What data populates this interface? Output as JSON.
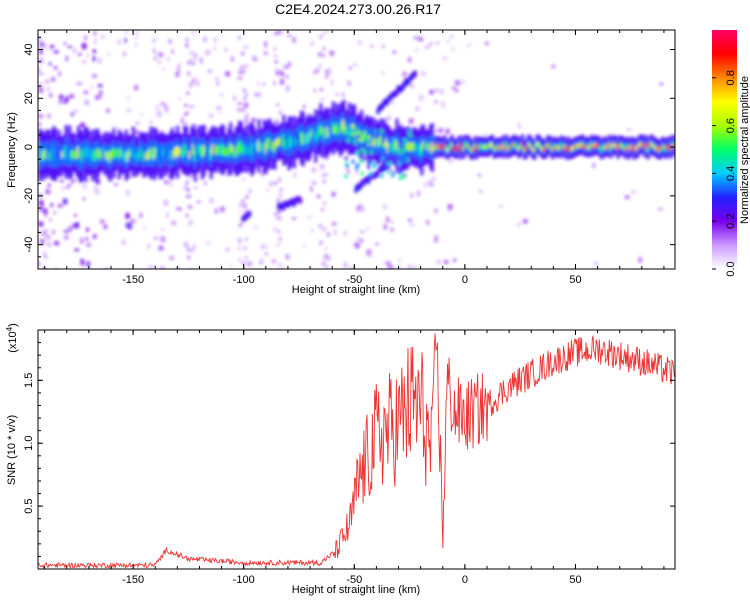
{
  "title": "C2E4.2024.273.00.26.R17",
  "chart_data": [
    {
      "type": "heatmap",
      "xlabel": "Height of straight line (km)",
      "ylabel": "Frequency (Hz)",
      "xlim": [
        -193,
        95
      ],
      "ylim": [
        -50,
        48
      ],
      "x_ticks": [
        -150,
        -100,
        -50,
        0,
        50
      ],
      "x_tick_labels": [
        "-150",
        "-100",
        "-50",
        "0",
        "50"
      ],
      "y_ticks": [
        -40,
        -20,
        0,
        20,
        40
      ],
      "y_tick_labels": [
        "-40",
        "-20",
        "0",
        "20",
        "40"
      ],
      "colorbar": {
        "label": "Normalized spectral amplitude",
        "range": [
          0.0,
          1.0
        ],
        "ticks": [
          0.0,
          0.2,
          0.4,
          0.6,
          0.8
        ],
        "tick_labels": [
          "0.0",
          "0.2",
          "0.4",
          "0.6",
          "0.8"
        ],
        "colormap": [
          "#ffffff",
          "#cc99ff",
          "#7700ee",
          "#2222ff",
          "#00ccff",
          "#00ff66",
          "#aaff00",
          "#ffff00",
          "#ff8800",
          "#ff0000",
          "#ff0066"
        ]
      },
      "features": [
        {
          "name": "main_band",
          "x": [
            -193,
            -150,
            -120,
            -100,
            -80,
            -65,
            -55,
            -45,
            -35,
            -20,
            0,
            30,
            60,
            95
          ],
          "y": [
            -3,
            -3,
            -2,
            -1,
            2,
            6,
            8,
            4,
            0,
            0,
            0,
            0,
            0,
            0
          ]
        },
        {
          "name": "upper_branch",
          "x": [
            -40,
            -30,
            -23
          ],
          "y": [
            15,
            24,
            30
          ]
        },
        {
          "name": "lower_branch",
          "x": [
            -50,
            -42,
            -35
          ],
          "y": [
            -17,
            -12,
            -7
          ]
        },
        {
          "name": "blob_low_1",
          "x": [
            -101,
            -98
          ],
          "y": [
            -30,
            -28
          ]
        },
        {
          "name": "blob_low_2",
          "x": [
            -85,
            -75
          ],
          "y": [
            -25,
            -22
          ]
        }
      ]
    },
    {
      "type": "line",
      "xlabel": "Height of straight line (km)",
      "ylabel": "SNR (10 * v/v)",
      "multiplier_label": "(x10",
      "multiplier_exp": "4",
      "xlim": [
        -193,
        95
      ],
      "ylim": [
        0,
        1.9
      ],
      "x_ticks": [
        -150,
        -100,
        -50,
        0,
        50
      ],
      "x_tick_labels": [
        "-150",
        "-100",
        "-50",
        "0",
        "50"
      ],
      "y_ticks": [
        0.5,
        1.0,
        1.5
      ],
      "y_tick_labels": [
        "0.5",
        "1.0",
        "1.5"
      ],
      "line_color": "#ee3333",
      "envelope": {
        "x": [
          -193,
          -140,
          -135,
          -125,
          -100,
          -65,
          -58,
          -52,
          -48,
          -40,
          -30,
          -25,
          -20,
          -15,
          -13,
          -10,
          -8,
          -5,
          0,
          10,
          20,
          30,
          40,
          50,
          60,
          70,
          80,
          95
        ],
        "y": [
          0.03,
          0.03,
          0.15,
          0.08,
          0.05,
          0.05,
          0.15,
          0.35,
          0.7,
          1.05,
          1.15,
          1.3,
          1.3,
          0.9,
          1.9,
          0.3,
          1.5,
          1.25,
          1.2,
          1.3,
          1.45,
          1.55,
          1.65,
          1.72,
          1.75,
          1.7,
          1.65,
          1.55
        ]
      }
    }
  ]
}
